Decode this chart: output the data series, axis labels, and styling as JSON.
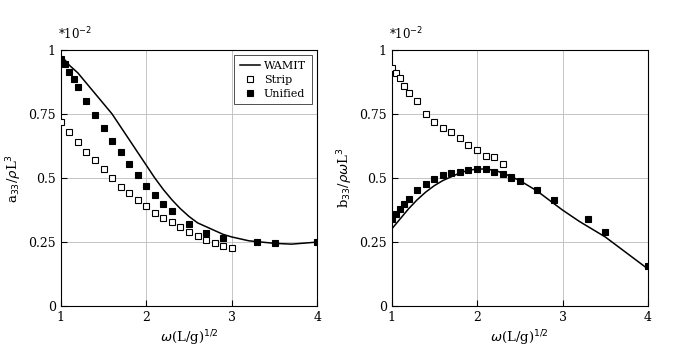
{
  "left_wamit_x": [
    1.0,
    1.05,
    1.1,
    1.2,
    1.3,
    1.4,
    1.5,
    1.6,
    1.7,
    1.8,
    1.9,
    2.0,
    2.1,
    2.2,
    2.3,
    2.4,
    2.5,
    2.6,
    2.7,
    2.8,
    2.9,
    3.0,
    3.2,
    3.5,
    3.7,
    4.0
  ],
  "left_wamit_y": [
    0.97,
    0.96,
    0.94,
    0.91,
    0.87,
    0.83,
    0.79,
    0.75,
    0.7,
    0.65,
    0.6,
    0.55,
    0.5,
    0.455,
    0.415,
    0.38,
    0.35,
    0.325,
    0.31,
    0.295,
    0.28,
    0.27,
    0.255,
    0.245,
    0.242,
    0.25
  ],
  "left_strip_x": [
    1.0,
    1.1,
    1.2,
    1.3,
    1.4,
    1.5,
    1.6,
    1.7,
    1.8,
    1.9,
    2.0,
    2.1,
    2.2,
    2.3,
    2.4,
    2.5,
    2.6,
    2.7,
    2.8,
    2.9,
    3.0
  ],
  "left_strip_y": [
    0.72,
    0.68,
    0.64,
    0.6,
    0.57,
    0.535,
    0.5,
    0.465,
    0.44,
    0.415,
    0.39,
    0.365,
    0.345,
    0.33,
    0.31,
    0.29,
    0.275,
    0.26,
    0.245,
    0.235,
    0.225
  ],
  "left_unified_x": [
    1.0,
    1.05,
    1.1,
    1.15,
    1.2,
    1.3,
    1.4,
    1.5,
    1.6,
    1.7,
    1.8,
    1.9,
    2.0,
    2.1,
    2.2,
    2.3,
    2.5,
    2.7,
    2.9,
    3.3,
    3.5,
    4.0
  ],
  "left_unified_y": [
    0.965,
    0.945,
    0.915,
    0.885,
    0.855,
    0.8,
    0.745,
    0.695,
    0.645,
    0.6,
    0.555,
    0.51,
    0.47,
    0.435,
    0.4,
    0.37,
    0.32,
    0.285,
    0.265,
    0.25,
    0.245,
    0.25
  ],
  "right_wamit_x": [
    1.0,
    1.05,
    1.1,
    1.15,
    1.2,
    1.3,
    1.4,
    1.5,
    1.6,
    1.7,
    1.8,
    1.9,
    2.0,
    2.1,
    2.2,
    2.3,
    2.4,
    2.5,
    2.6,
    2.7,
    2.8,
    2.9,
    3.0,
    3.2,
    3.5,
    4.0
  ],
  "right_wamit_y": [
    0.3,
    0.32,
    0.34,
    0.36,
    0.38,
    0.415,
    0.445,
    0.47,
    0.49,
    0.505,
    0.52,
    0.53,
    0.535,
    0.535,
    0.53,
    0.52,
    0.505,
    0.49,
    0.47,
    0.45,
    0.425,
    0.4,
    0.375,
    0.33,
    0.27,
    0.145
  ],
  "right_strip_x": [
    1.0,
    1.05,
    1.1,
    1.15,
    1.2,
    1.3,
    1.4,
    1.5,
    1.6,
    1.7,
    1.8,
    1.9,
    2.0,
    2.1,
    2.2,
    2.3,
    2.4
  ],
  "right_strip_y": [
    0.93,
    0.91,
    0.89,
    0.86,
    0.83,
    0.8,
    0.75,
    0.72,
    0.695,
    0.68,
    0.655,
    0.63,
    0.61,
    0.585,
    0.58,
    0.555,
    0.5
  ],
  "right_unified_x": [
    1.0,
    1.05,
    1.1,
    1.15,
    1.2,
    1.3,
    1.4,
    1.5,
    1.6,
    1.7,
    1.8,
    1.9,
    2.0,
    2.1,
    2.2,
    2.3,
    2.4,
    2.5,
    2.7,
    2.9,
    3.3,
    3.5,
    4.0
  ],
  "right_unified_y": [
    0.34,
    0.36,
    0.38,
    0.4,
    0.42,
    0.455,
    0.475,
    0.495,
    0.51,
    0.52,
    0.525,
    0.53,
    0.535,
    0.535,
    0.525,
    0.515,
    0.505,
    0.49,
    0.455,
    0.415,
    0.34,
    0.29,
    0.155
  ],
  "left_ylabel": "a$_{33}$/$\\rho$L$^3$",
  "right_ylabel": "b$_{33}$/$\\rho\\omega$L$^3$",
  "xlabel": "$\\omega$(L/g)$^{1/2}$",
  "xlim": [
    1,
    4
  ],
  "left_ylim": [
    0,
    1.0
  ],
  "right_ylim": [
    0,
    1.0
  ],
  "xticks": [
    1,
    2,
    3,
    4
  ],
  "ytick_labels": [
    "0",
    "0.25",
    "0.5",
    "0.75",
    "1"
  ],
  "ytick_vals": [
    0,
    0.25,
    0.5,
    0.75,
    1.0
  ],
  "scale_label": "*10$^{-2}$",
  "legend_labels": [
    "WAMIT",
    "Strip",
    "Unified"
  ],
  "line_color": "black",
  "grid_color": "#bbbbbb",
  "background_color": "white",
  "marker_size": 4.5
}
